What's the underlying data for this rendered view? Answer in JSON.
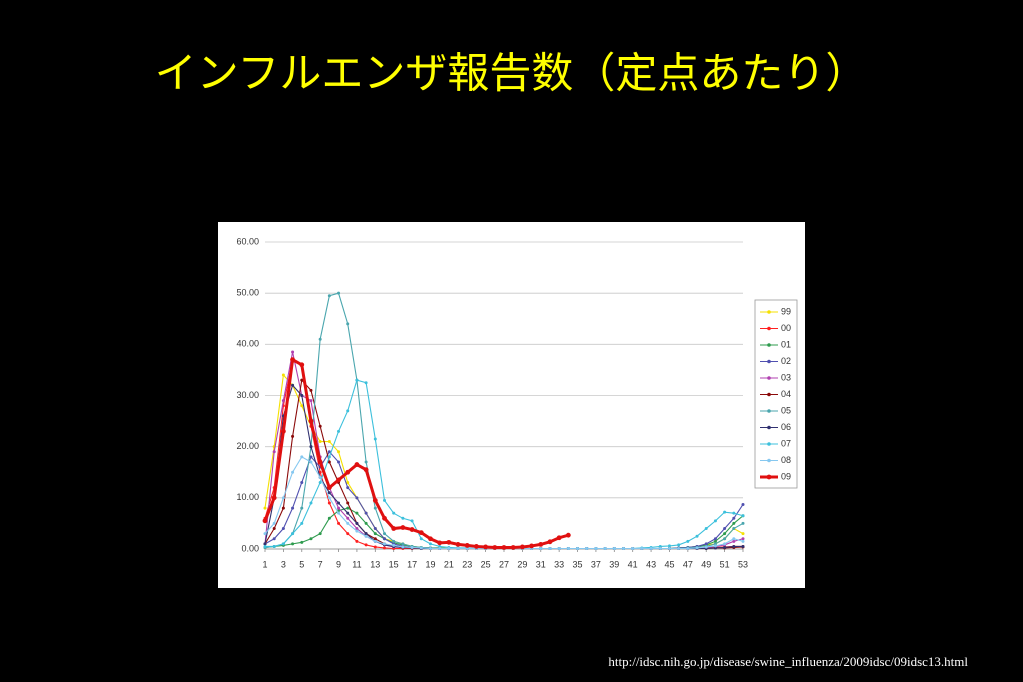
{
  "chart_data": {
    "type": "line",
    "title": "インフルエンザ報告数（定点あたり）",
    "source": "http://idsc.nih.go.jp/disease/swine_influenza/2009idsc/09idsc13.html",
    "x": [
      1,
      2,
      3,
      4,
      5,
      6,
      7,
      8,
      9,
      10,
      11,
      12,
      13,
      14,
      15,
      16,
      17,
      18,
      19,
      20,
      21,
      22,
      23,
      24,
      25,
      26,
      27,
      28,
      29,
      30,
      31,
      32,
      33,
      34,
      35,
      36,
      37,
      38,
      39,
      40,
      41,
      42,
      43,
      44,
      45,
      46,
      47,
      48,
      49,
      50,
      51,
      52,
      53
    ],
    "xlim": [
      1,
      53
    ],
    "xticks": [
      1,
      3,
      5,
      7,
      9,
      11,
      13,
      15,
      17,
      19,
      21,
      23,
      25,
      27,
      29,
      31,
      33,
      35,
      37,
      39,
      41,
      43,
      45,
      47,
      49,
      51,
      53
    ],
    "ylim": [
      0,
      60
    ],
    "yticks": [
      {
        "value": 0,
        "label": "0.00"
      },
      {
        "value": 10,
        "label": "10.00"
      },
      {
        "value": 20,
        "label": "20.00"
      },
      {
        "value": 30,
        "label": "30.00"
      },
      {
        "value": 40,
        "label": "40.00"
      },
      {
        "value": 50,
        "label": "50.00"
      },
      {
        "value": 60,
        "label": "60.00"
      }
    ],
    "grid": true,
    "legend": "right",
    "series": [
      {
        "name": "99",
        "color": "#f5e000",
        "values": [
          8,
          20,
          34,
          32,
          28,
          24,
          21,
          21,
          19,
          13,
          10,
          7,
          4,
          2,
          1.5,
          1,
          0.5,
          0.3,
          0.2,
          0.2,
          0.1,
          0.1,
          0.1,
          0.1,
          0.1,
          0.1,
          0.1,
          0.1,
          0.1,
          0.1,
          0.1,
          0.1,
          0.1,
          0.1,
          0.1,
          0.1,
          0.1,
          0.1,
          0.1,
          0.1,
          0.1,
          0.1,
          0.1,
          0.1,
          0.1,
          0.2,
          0.3,
          0.5,
          0.8,
          1,
          2,
          4,
          3
        ]
      },
      {
        "name": "00",
        "color": "#ff2020",
        "values": [
          6,
          12,
          28,
          37,
          36,
          24,
          15,
          9,
          5,
          3,
          1.5,
          0.8,
          0.4,
          0.2,
          0.1,
          0.1,
          0.1,
          0.1,
          0.1,
          0.1,
          0.1,
          0.1,
          0.1,
          0.1,
          0.1,
          0.1,
          0.1,
          0.1,
          0.1,
          0.1,
          0.1,
          0.1,
          0.1,
          0.1,
          0.1,
          0.1,
          0.1,
          0.1,
          0.1,
          0.1,
          0.1,
          0.1,
          0.1,
          0.1,
          0.1,
          0.1,
          0.1,
          0.1,
          0.2,
          0.3,
          0.4,
          0.5,
          0.5
        ]
      },
      {
        "name": "01",
        "color": "#2e9b4e",
        "values": [
          0.3,
          0.5,
          0.7,
          1,
          1.3,
          2,
          3,
          6,
          7.5,
          8,
          7,
          5,
          3,
          2,
          1.2,
          0.8,
          0.5,
          0.3,
          0.2,
          0.2,
          0.1,
          0.1,
          0.1,
          0.1,
          0.1,
          0.1,
          0.1,
          0.1,
          0.1,
          0.1,
          0.1,
          0.1,
          0.1,
          0.1,
          0.1,
          0.1,
          0.1,
          0.1,
          0.1,
          0.1,
          0.1,
          0.1,
          0.1,
          0.1,
          0.1,
          0.2,
          0.3,
          0.5,
          0.8,
          1.5,
          3,
          5,
          6.5
        ]
      },
      {
        "name": "02",
        "color": "#5050b0",
        "values": [
          1,
          2,
          4,
          8,
          13,
          18,
          16,
          19,
          17,
          12,
          10,
          7,
          4,
          2,
          1,
          0.5,
          0.3,
          0.2,
          0.2,
          0.1,
          0.1,
          0.1,
          0.1,
          0.1,
          0.1,
          0.1,
          0.1,
          0.1,
          0.1,
          0.1,
          0.1,
          0.1,
          0.1,
          0.1,
          0.1,
          0.1,
          0.1,
          0.1,
          0.1,
          0.1,
          0.1,
          0.1,
          0.1,
          0.1,
          0.1,
          0.2,
          0.3,
          0.5,
          1,
          2,
          4,
          6,
          8.7
        ]
      },
      {
        "name": "03",
        "color": "#b040b0",
        "values": [
          1,
          19,
          29,
          38.5,
          30,
          29,
          18,
          12,
          8,
          6,
          4,
          2.5,
          1.5,
          0.8,
          0.4,
          0.3,
          0.2,
          0.2,
          0.1,
          0.1,
          0.1,
          0.1,
          0.1,
          0.1,
          0.1,
          0.1,
          0.1,
          0.1,
          0.1,
          0.1,
          0.1,
          0.1,
          0.1,
          0.1,
          0.1,
          0.1,
          0.1,
          0.1,
          0.1,
          0.1,
          0.1,
          0.1,
          0.1,
          0.1,
          0.1,
          0.1,
          0.1,
          0.2,
          0.3,
          0.5,
          0.8,
          1.5,
          2
        ]
      },
      {
        "name": "04",
        "color": "#8b0a0a",
        "values": [
          1,
          4,
          8,
          22,
          33,
          31,
          24,
          17,
          13,
          9,
          5,
          3,
          2,
          1,
          0.5,
          0.3,
          0.2,
          0.1,
          0.1,
          0.1,
          0.1,
          0.1,
          0.1,
          0.1,
          0.1,
          0.1,
          0.1,
          0.1,
          0.1,
          0.1,
          0.1,
          0.1,
          0.1,
          0.1,
          0.1,
          0.1,
          0.1,
          0.1,
          0.1,
          0.1,
          0.1,
          0.1,
          0.1,
          0.1,
          0.1,
          0.1,
          0.1,
          0.1,
          0.1,
          0.2,
          0.2,
          0.3,
          0.4
        ]
      },
      {
        "name": "05",
        "color": "#4aa6ae",
        "values": [
          0.3,
          0.5,
          1,
          3,
          8,
          20,
          41,
          49.5,
          50,
          44,
          33,
          17,
          8,
          3,
          1.5,
          1,
          0.5,
          0.3,
          0.2,
          0.1,
          0.1,
          0.1,
          0.1,
          0.1,
          0.1,
          0.1,
          0.1,
          0.1,
          0.1,
          0.1,
          0.1,
          0.1,
          0.1,
          0.1,
          0.1,
          0.1,
          0.1,
          0.1,
          0.1,
          0.1,
          0.1,
          0.1,
          0.1,
          0.1,
          0.1,
          0.1,
          0.2,
          0.3,
          0.5,
          1,
          2,
          4,
          5
        ]
      },
      {
        "name": "06",
        "color": "#303070",
        "values": [
          1,
          10,
          26,
          32,
          30,
          20,
          14,
          11,
          9,
          7,
          5,
          3,
          1.5,
          0.8,
          0.5,
          0.3,
          0.2,
          0.1,
          0.1,
          0.1,
          0.1,
          0.1,
          0.1,
          0.1,
          0.1,
          0.1,
          0.1,
          0.1,
          0.1,
          0.1,
          0.1,
          0.1,
          0.1,
          0.1,
          0.1,
          0.1,
          0.1,
          0.1,
          0.1,
          0.1,
          0.1,
          0.1,
          0.1,
          0.1,
          0.1,
          0.1,
          0.1,
          0.1,
          0.1,
          0.2,
          0.3,
          0.5,
          0.5
        ]
      },
      {
        "name": "07",
        "color": "#3cc0dc",
        "values": [
          0.5,
          0.5,
          1,
          3,
          5,
          9,
          13,
          18,
          23,
          27,
          33,
          32.5,
          21.5,
          9.5,
          7,
          6,
          5.5,
          2,
          1,
          0.5,
          0.3,
          0.2,
          0.2,
          0.1,
          0.1,
          0.1,
          0.1,
          0.1,
          0.1,
          0.1,
          0.1,
          0.1,
          0.1,
          0.1,
          0.1,
          0.1,
          0.1,
          0.1,
          0.1,
          0.1,
          0.1,
          0.2,
          0.3,
          0.5,
          0.6,
          0.8,
          1.5,
          2.5,
          4,
          5.5,
          7.2,
          7,
          6.5
        ]
      },
      {
        "name": "08",
        "color": "#86c8f0",
        "values": [
          3,
          5,
          10,
          15,
          18,
          17,
          14,
          10,
          7,
          5,
          3.5,
          2.5,
          1.5,
          1,
          0.7,
          0.4,
          0.3,
          0.2,
          0.1,
          0.1,
          0.1,
          0.1,
          0.1,
          0.1,
          0.1,
          0.1,
          0.1,
          0.1,
          0.1,
          0.1,
          0.1,
          0.1,
          0.1,
          0.1,
          0.1,
          0.1,
          0.1,
          0.1,
          0.1,
          0.1,
          0.1,
          0.1,
          0.1,
          0.1,
          0.1,
          0.1,
          0.1,
          0.2,
          0.4,
          0.6,
          1,
          2,
          1.5
        ]
      },
      {
        "name": "09",
        "color": "#e01010",
        "values": [
          5.5,
          10,
          23,
          37,
          36,
          25,
          17,
          12,
          13.5,
          15,
          16.5,
          15.5,
          9.5,
          6,
          4,
          4.2,
          3.8,
          3.2,
          2,
          1.2,
          1.3,
          0.9,
          0.7,
          0.5,
          0.4,
          0.3,
          0.3,
          0.3,
          0.4,
          0.6,
          0.9,
          1.4,
          2.2,
          2.7,
          null,
          null,
          null,
          null,
          null,
          null,
          null,
          null,
          null,
          null,
          null,
          null,
          null,
          null,
          null,
          null,
          null,
          null,
          null
        ]
      }
    ]
  }
}
